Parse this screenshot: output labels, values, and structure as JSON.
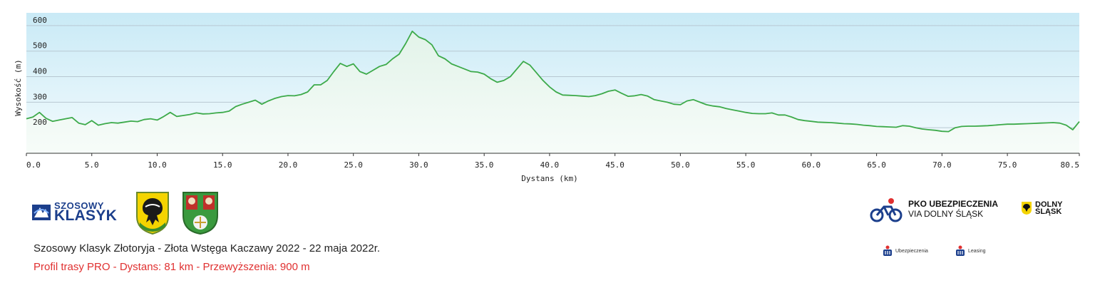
{
  "chart_data": {
    "type": "area",
    "xlabel": "Dystans  (km)",
    "ylabel": "Wysokość (m)",
    "xlim": [
      0,
      80.5
    ],
    "ylim": [
      100,
      650
    ],
    "x_ticks": [
      "0.0",
      "5.0",
      "10.0",
      "15.0",
      "20.0",
      "25.0",
      "30.0",
      "35.0",
      "40.0",
      "45.0",
      "50.0",
      "55.0",
      "60.0",
      "65.0",
      "70.0",
      "75.0",
      "80.5"
    ],
    "y_ticks": [
      "200",
      "300",
      "400",
      "500",
      "600"
    ],
    "grid": true,
    "series": [
      {
        "x": [
          0,
          0.5,
          1.0,
          1.5,
          2.0,
          2.5,
          3.0,
          3.5,
          4.0,
          4.5,
          5.0,
          5.5,
          6.0,
          6.5,
          7.0,
          7.5,
          8.0,
          8.5,
          9.0,
          9.5,
          10.0,
          10.5,
          11.0,
          11.5,
          12.0,
          12.5,
          13.0,
          13.5,
          14.0,
          14.5,
          15.0,
          15.5,
          16.0,
          16.5,
          17.0,
          17.5,
          18.0,
          18.5,
          19.0,
          19.5,
          20.0,
          20.5,
          21.0,
          21.5,
          22.0,
          22.5,
          23.0,
          23.5,
          24.0,
          24.5,
          25.0,
          25.5,
          26.0,
          26.5,
          27.0,
          27.5,
          28.0,
          28.5,
          29.0,
          29.5,
          30.0,
          30.5,
          31.0,
          31.5,
          32.0,
          32.5,
          33.0,
          33.5,
          34.0,
          34.5,
          35.0,
          35.5,
          36.0,
          36.5,
          37.0,
          37.5,
          38.0,
          38.5,
          39.0,
          39.5,
          40.0,
          40.5,
          41.0,
          41.5,
          42.0,
          42.5,
          43.0,
          43.5,
          44.0,
          44.5,
          45.0,
          45.5,
          46.0,
          46.5,
          47.0,
          47.5,
          48.0,
          48.5,
          49.0,
          49.5,
          50.0,
          50.5,
          51.0,
          51.5,
          52.0,
          52.5,
          53.0,
          53.5,
          54.0,
          54.5,
          55.0,
          55.5,
          56.0,
          56.5,
          57.0,
          57.5,
          58.0,
          58.5,
          59.0,
          59.5,
          60.0,
          60.5,
          61.0,
          61.5,
          62.0,
          62.5,
          63.0,
          63.5,
          64.0,
          64.5,
          65.0,
          65.5,
          66.0,
          66.5,
          67.0,
          67.5,
          68.0,
          68.5,
          69.0,
          69.5,
          70.0,
          70.5,
          71.0,
          71.5,
          72.0,
          72.5,
          73.0,
          73.5,
          74.0,
          74.5,
          75.0,
          75.5,
          76.0,
          76.5,
          77.0,
          77.5,
          78.0,
          78.5,
          79.0,
          79.5,
          80.0,
          80.5
        ],
        "y": [
          235,
          242,
          260,
          237,
          225,
          230,
          235,
          240,
          218,
          212,
          228,
          210,
          216,
          220,
          218,
          222,
          226,
          224,
          232,
          235,
          230,
          244,
          260,
          244,
          248,
          252,
          258,
          254,
          255,
          258,
          260,
          265,
          283,
          292,
          300,
          308,
          292,
          305,
          315,
          322,
          326,
          325,
          330,
          340,
          368,
          368,
          385,
          420,
          452,
          440,
          450,
          420,
          410,
          425,
          440,
          448,
          470,
          488,
          530,
          578,
          555,
          545,
          525,
          482,
          470,
          450,
          440,
          430,
          420,
          418,
          410,
          392,
          378,
          385,
          400,
          430,
          460,
          445,
          415,
          385,
          360,
          340,
          328,
          327,
          326,
          324,
          322,
          326,
          333,
          343,
          348,
          335,
          323,
          325,
          330,
          324,
          310,
          305,
          300,
          292,
          290,
          305,
          310,
          300,
          290,
          285,
          282,
          275,
          270,
          265,
          260,
          256,
          255,
          255,
          258,
          250,
          250,
          242,
          232,
          228,
          225,
          222,
          221,
          220,
          218,
          216,
          215,
          213,
          210,
          208,
          205,
          204,
          203,
          202,
          208,
          206,
          200,
          195,
          192,
          190,
          186,
          185,
          200,
          205,
          206,
          206,
          207,
          208,
          210,
          212,
          214,
          214,
          215,
          216,
          217,
          218,
          219,
          220,
          218,
          210,
          192,
          224
        ]
      }
    ]
  },
  "caption": {
    "title": "Szosowy Klasyk Złotoryja - Złota Wstęga Kaczawy 2022 - 22 maja 2022r.",
    "subtitle": "Profil trasy PRO - Dystans: 81 km - Przewyższenia: 900 m"
  },
  "logos": {
    "szosowy_line1": "SZOSOWY",
    "szosowy_line2": "KLASYK",
    "pko_line1": "PKO UBEZPIECZENIA",
    "pko_line2": "VIA DOLNY ŚLĄSK",
    "dolny_line1": "DOLNY",
    "dolny_line2": "ŚLĄSK",
    "sponsor1": "Ubezpieczenia",
    "sponsor2": "Leasing"
  },
  "colors": {
    "line": "#3daa4a",
    "fill_top": "#e7f5ec",
    "fill_bottom": "#f6fbf8",
    "bg_top": "#c9eaf6",
    "bg_bottom": "#f3fbfd",
    "grid": "#b8c8d2",
    "caption_red": "#e03030",
    "brand_blue": "#1c3f8c"
  }
}
